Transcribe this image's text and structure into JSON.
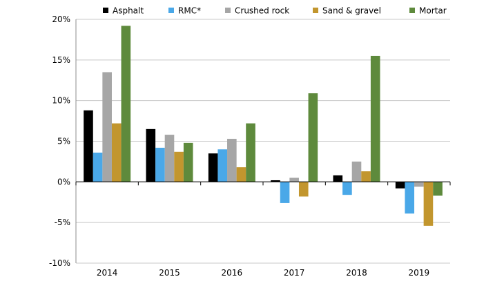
{
  "chart_data": {
    "type": "bar",
    "title": "",
    "xlabel": "",
    "ylabel": "",
    "categories": [
      "2014",
      "2015",
      "2016",
      "2017",
      "2018",
      "2019"
    ],
    "y_unit": "%",
    "ylim": [
      -10,
      20
    ],
    "yticks": [
      -10,
      -5,
      0,
      5,
      10,
      15,
      20
    ],
    "ytick_labels": [
      "-10%",
      "-5%",
      "0%",
      "5%",
      "10%",
      "15%",
      "20%"
    ],
    "grid": "horizontal",
    "legend_position": "top",
    "series": [
      {
        "name": "Asphalt",
        "color": "#000000",
        "values": [
          8.8,
          6.5,
          3.5,
          0.2,
          0.8,
          -0.8
        ]
      },
      {
        "name": "RMC*",
        "color": "#4aa8e8",
        "values": [
          3.6,
          4.2,
          4.0,
          -2.6,
          -1.6,
          -3.9
        ]
      },
      {
        "name": "Crushed rock",
        "color": "#a6a6a6",
        "values": [
          13.5,
          5.8,
          5.3,
          0.5,
          2.5,
          -0.6
        ]
      },
      {
        "name": "Sand & gravel",
        "color": "#c2962e",
        "values": [
          7.2,
          3.7,
          1.8,
          -1.8,
          1.3,
          -5.4
        ]
      },
      {
        "name": "Mortar",
        "color": "#5e8a3c",
        "values": [
          19.2,
          4.8,
          7.2,
          10.9,
          15.5,
          -1.7
        ]
      }
    ]
  }
}
